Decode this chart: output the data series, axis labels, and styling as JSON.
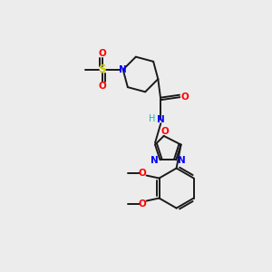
{
  "background_color": "#ececec",
  "bond_color": "#1a1a1a",
  "atom_colors": {
    "N": "#0000ff",
    "O": "#ff0000",
    "S": "#cccc00",
    "C": "#1a1a1a",
    "H": "#20b2aa"
  },
  "figsize": [
    3.0,
    3.0
  ],
  "dpi": 100
}
